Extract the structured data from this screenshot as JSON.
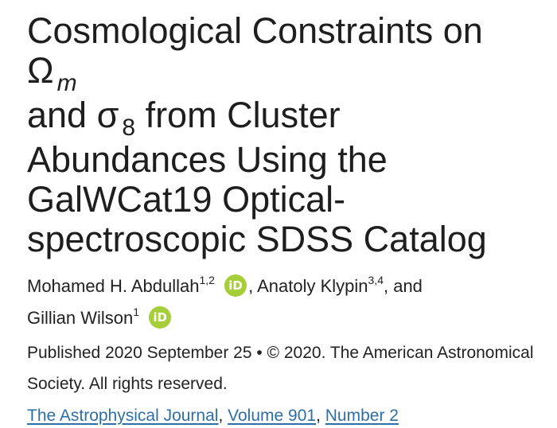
{
  "article": {
    "title_part1": "Cosmological Constraints on Ω",
    "title_sub_m": "m",
    "title_part2": "and σ",
    "title_sub_8": "8",
    "title_part3": "from Cluster Abundances Using the GalWCat19 Optical-spectroscopic SDSS Catalog"
  },
  "authors": [
    {
      "name": "Mohamed H. Abdullah",
      "affiliations": "1,2",
      "orcid": "iD",
      "separator": ","
    },
    {
      "name": "Anatoly Klypin",
      "affiliations": "3,4",
      "separator": ", and"
    },
    {
      "name": "Gillian Wilson",
      "affiliations": "1",
      "orcid": "iD"
    }
  ],
  "publication": {
    "published_text": "Published 2020 September 25 • © 2020. The American Astronomical Society. All rights reserved."
  },
  "journal_links": {
    "journal": "The Astrophysical Journal",
    "volume": "Volume 901",
    "number": "Number 2",
    "sep": ","
  },
  "colors": {
    "orcid": "#a6ce39",
    "link": "#2d6fa8",
    "text": "#1e1e1e"
  }
}
